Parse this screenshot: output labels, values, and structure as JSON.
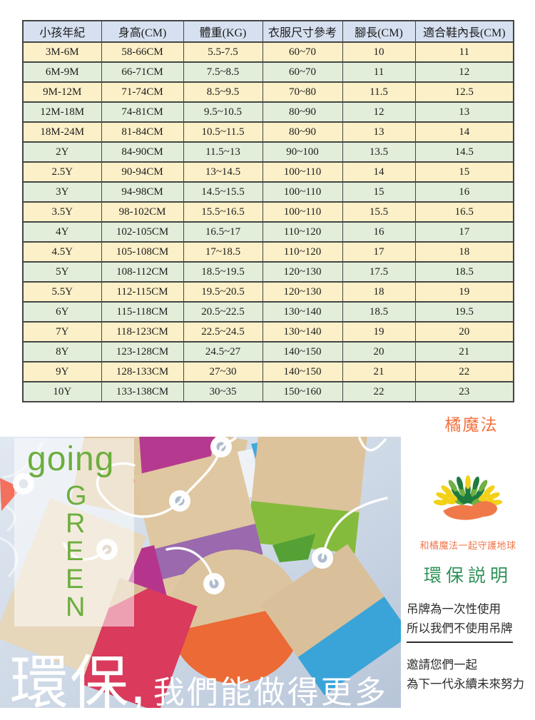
{
  "size_chart": {
    "headers": [
      "小孩年紀",
      "身高(CM)",
      "體重(KG)",
      "衣服尺寸參考",
      "腳長(CM)",
      "適合鞋內長(CM)"
    ],
    "rows": [
      [
        "3M-6M",
        "58-66CM",
        "5.5-7.5",
        "60~70",
        "10",
        "11"
      ],
      [
        "6M-9M",
        "66-71CM",
        "7.5~8.5",
        "60~70",
        "11",
        "12"
      ],
      [
        "9M-12M",
        "71-74CM",
        "8.5~9.5",
        "70~80",
        "11.5",
        "12.5"
      ],
      [
        "12M-18M",
        "74-81CM",
        "9.5~10.5",
        "80~90",
        "12",
        "13"
      ],
      [
        "18M-24M",
        "81-84CM",
        "10.5~11.5",
        "80~90",
        "13",
        "14"
      ],
      [
        "2Y",
        "84-90CM",
        "11.5~13",
        "90~100",
        "13.5",
        "14.5"
      ],
      [
        "2.5Y",
        "90-94CM",
        "13~14.5",
        "100~110",
        "14",
        "15"
      ],
      [
        "3Y",
        "94-98CM",
        "14.5~15.5",
        "100~110",
        "15",
        "16"
      ],
      [
        "3.5Y",
        "98-102CM",
        "15.5~16.5",
        "100~110",
        "15.5",
        "16.5"
      ],
      [
        "4Y",
        "102-105CM",
        "16.5~17",
        "110~120",
        "16",
        "17"
      ],
      [
        "4.5Y",
        "105-108CM",
        "17~18.5",
        "110~120",
        "17",
        "18"
      ],
      [
        "5Y",
        "108-112CM",
        "18.5~19.5",
        "120~130",
        "17.5",
        "18.5"
      ],
      [
        "5.5Y",
        "112-115CM",
        "19.5~20.5",
        "120~130",
        "18",
        "19"
      ],
      [
        "6Y",
        "115-118CM",
        "20.5~22.5",
        "130~140",
        "18.5",
        "19.5"
      ],
      [
        "7Y",
        "118-123CM",
        "22.5~24.5",
        "130~140",
        "19",
        "20"
      ],
      [
        "8Y",
        "123-128CM",
        "24.5~27",
        "140~150",
        "20",
        "21"
      ],
      [
        "9Y",
        "128-133CM",
        "27~30",
        "140~150",
        "21",
        "22"
      ],
      [
        "10Y",
        "133-138CM",
        "30~35",
        "150~160",
        "22",
        "23"
      ]
    ]
  },
  "brand": {
    "name": "橘魔法"
  },
  "green_section": {
    "going": "going",
    "green": "GREEN",
    "slogan_large": "環保,",
    "slogan_small": "我們能做得更多"
  },
  "eco_panel": {
    "logo": "tree-hand-logo",
    "tagline": "和橘魔法一起守護地球",
    "title": "環保説明",
    "note_line1": "吊牌為一次性使用",
    "note_line2": "所以我們不使用吊牌",
    "invite_line1": "邀請您們一起",
    "invite_line2": "為下一代永續未來努力"
  },
  "colors": {
    "header_bg": "#d6e0f0",
    "row_beige": "#fcf0c8",
    "row_green": "#e2eeda",
    "table_border": "#454545",
    "brand_orange": "#f4703c",
    "eco_title_green": "#2e9158",
    "photo_text_green": "#6cae3d",
    "leaf_yellow": "#f2d117",
    "leaf_dark_green": "#1e7b3e",
    "leaf_mid_green": "#6fb043",
    "hand_orange": "#f0794a",
    "tag_kraft": "#dcc39c",
    "tag_magenta": "#b53a8f",
    "tag_purple": "#9a69ae",
    "tag_green": "#85bb3c",
    "tag_red": "#da3a5c",
    "tag_orange": "#ec6a35",
    "tag_blue": "#3aa4d9",
    "tag_coral": "#f2705c"
  }
}
